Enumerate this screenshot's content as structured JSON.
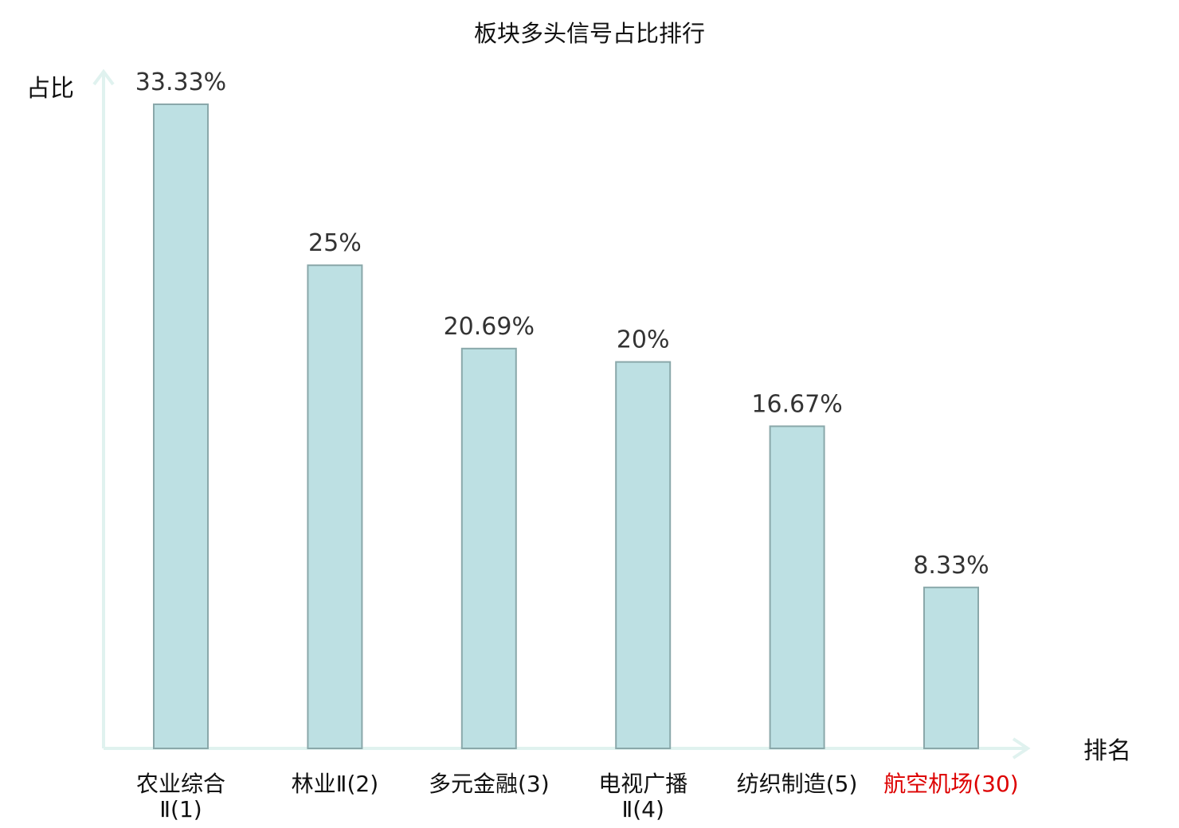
{
  "chart_data": {
    "type": "bar",
    "title": "板块多头信号占比排行",
    "ylabel": "占比",
    "xlabel": "排名",
    "ylim": [
      0,
      35
    ],
    "grid": false,
    "categories": [
      {
        "lines": [
          "农业综合",
          "Ⅱ(1)"
        ],
        "highlight": false
      },
      {
        "lines": [
          "林业Ⅱ(2)"
        ],
        "highlight": false
      },
      {
        "lines": [
          "多元金融(3)"
        ],
        "highlight": false
      },
      {
        "lines": [
          "电视广播",
          "Ⅱ(4)"
        ],
        "highlight": false
      },
      {
        "lines": [
          "纺织制造(5)"
        ],
        "highlight": false
      },
      {
        "lines": [
          "航空机场(30)"
        ],
        "highlight": true
      }
    ],
    "values": [
      33.33,
      25,
      20.69,
      20,
      16.67,
      8.33
    ],
    "value_labels": [
      "33.33%",
      "25%",
      "20.69%",
      "20%",
      "16.67%",
      "8.33%"
    ],
    "colors": {
      "bar_fill": "#bde0e3",
      "bar_stroke": "#8aa8aa",
      "axis": "#e0f2ef",
      "highlight_label": "#dd0000"
    }
  }
}
